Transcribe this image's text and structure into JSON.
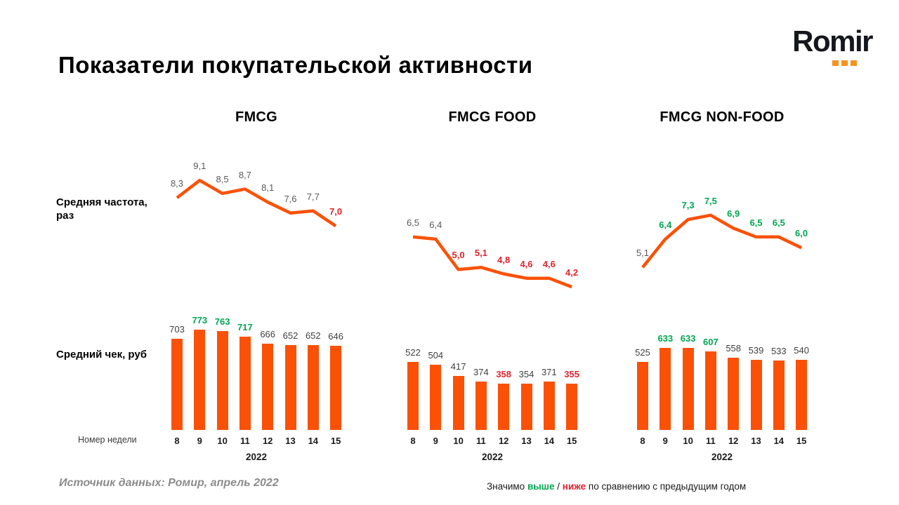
{
  "page": {
    "title": "Показатели покупательской активности",
    "logo_text": "Romir",
    "row_labels": {
      "frequency": "Средняя частота, раз",
      "check": "Средний чек, руб"
    },
    "week_axis_caption": "Номер недели",
    "source_note": "Источник данных: Ромир, апрель 2022",
    "legend": {
      "prefix": "Значимо ",
      "higher": "выше",
      "separator": " / ",
      "lower": "ниже",
      "suffix": " по сравнению  с предыдущим годом"
    }
  },
  "colors": {
    "orange": "#FA5107",
    "logo_orange": "#F6921E",
    "green": "#00A651",
    "red": "#E0222C",
    "line_neutral_label": "#595959",
    "bar_neutral_label": "#3F3F3F"
  },
  "chart_data": [
    {
      "title": "FMCG",
      "type": "line+bar",
      "x": [
        8,
        9,
        10,
        11,
        12,
        13,
        14,
        15
      ],
      "year": "2022",
      "frequency": {
        "name": "Средняя частота, раз",
        "values": [
          8.3,
          9.1,
          8.5,
          8.7,
          8.1,
          7.6,
          7.7,
          7.0
        ],
        "labels": [
          "8,3",
          "9,1",
          "8,5",
          "8,7",
          "8,1",
          "7,6",
          "7,7",
          "7,0"
        ],
        "states": [
          "neutral",
          "neutral",
          "neutral",
          "neutral",
          "neutral",
          "neutral",
          "neutral",
          "lower"
        ]
      },
      "check": {
        "name": "Средний чек, руб",
        "values": [
          703,
          773,
          763,
          717,
          666,
          652,
          652,
          646
        ],
        "labels": [
          "703",
          "773",
          "763",
          "717",
          "666",
          "652",
          "652",
          "646"
        ],
        "states": [
          "neutral",
          "higher",
          "higher",
          "higher",
          "neutral",
          "neutral",
          "neutral",
          "neutral"
        ]
      }
    },
    {
      "title": "FMCG FOOD",
      "type": "line+bar",
      "x": [
        8,
        9,
        10,
        11,
        12,
        13,
        14,
        15
      ],
      "year": "2022",
      "frequency": {
        "name": "Средняя частота, раз",
        "values": [
          6.5,
          6.4,
          5.0,
          5.1,
          4.8,
          4.6,
          4.6,
          4.2
        ],
        "labels": [
          "6,5",
          "6,4",
          "5,0",
          "5,1",
          "4,8",
          "4,6",
          "4,6",
          "4,2"
        ],
        "states": [
          "neutral",
          "neutral",
          "lower",
          "lower",
          "lower",
          "lower",
          "lower",
          "lower"
        ]
      },
      "check": {
        "name": "Средний чек, руб",
        "values": [
          522,
          504,
          417,
          374,
          358,
          354,
          371,
          355
        ],
        "labels": [
          "522",
          "504",
          "417",
          "374",
          "358",
          "354",
          "371",
          "355"
        ],
        "states": [
          "neutral",
          "neutral",
          "neutral",
          "neutral",
          "lower",
          "neutral",
          "neutral",
          "lower"
        ]
      }
    },
    {
      "title": "FMCG NON-FOOD",
      "type": "line+bar",
      "x": [
        8,
        9,
        10,
        11,
        12,
        13,
        14,
        15
      ],
      "year": "2022",
      "frequency": {
        "name": "Средняя частота, раз",
        "values": [
          5.1,
          6.4,
          7.3,
          7.5,
          6.9,
          6.5,
          6.5,
          6.0
        ],
        "labels": [
          "5,1",
          "6,4",
          "7,3",
          "7,5",
          "6,9",
          "6,5",
          "6,5",
          "6,0"
        ],
        "states": [
          "neutral",
          "higher",
          "higher",
          "higher",
          "higher",
          "higher",
          "higher",
          "higher"
        ]
      },
      "check": {
        "name": "Средний чек, руб",
        "values": [
          525,
          633,
          633,
          607,
          558,
          539,
          533,
          540
        ],
        "labels": [
          "525",
          "633",
          "633",
          "607",
          "558",
          "539",
          "533",
          "540"
        ],
        "states": [
          "neutral",
          "higher",
          "higher",
          "higher",
          "neutral",
          "neutral",
          "neutral",
          "neutral"
        ]
      }
    }
  ]
}
